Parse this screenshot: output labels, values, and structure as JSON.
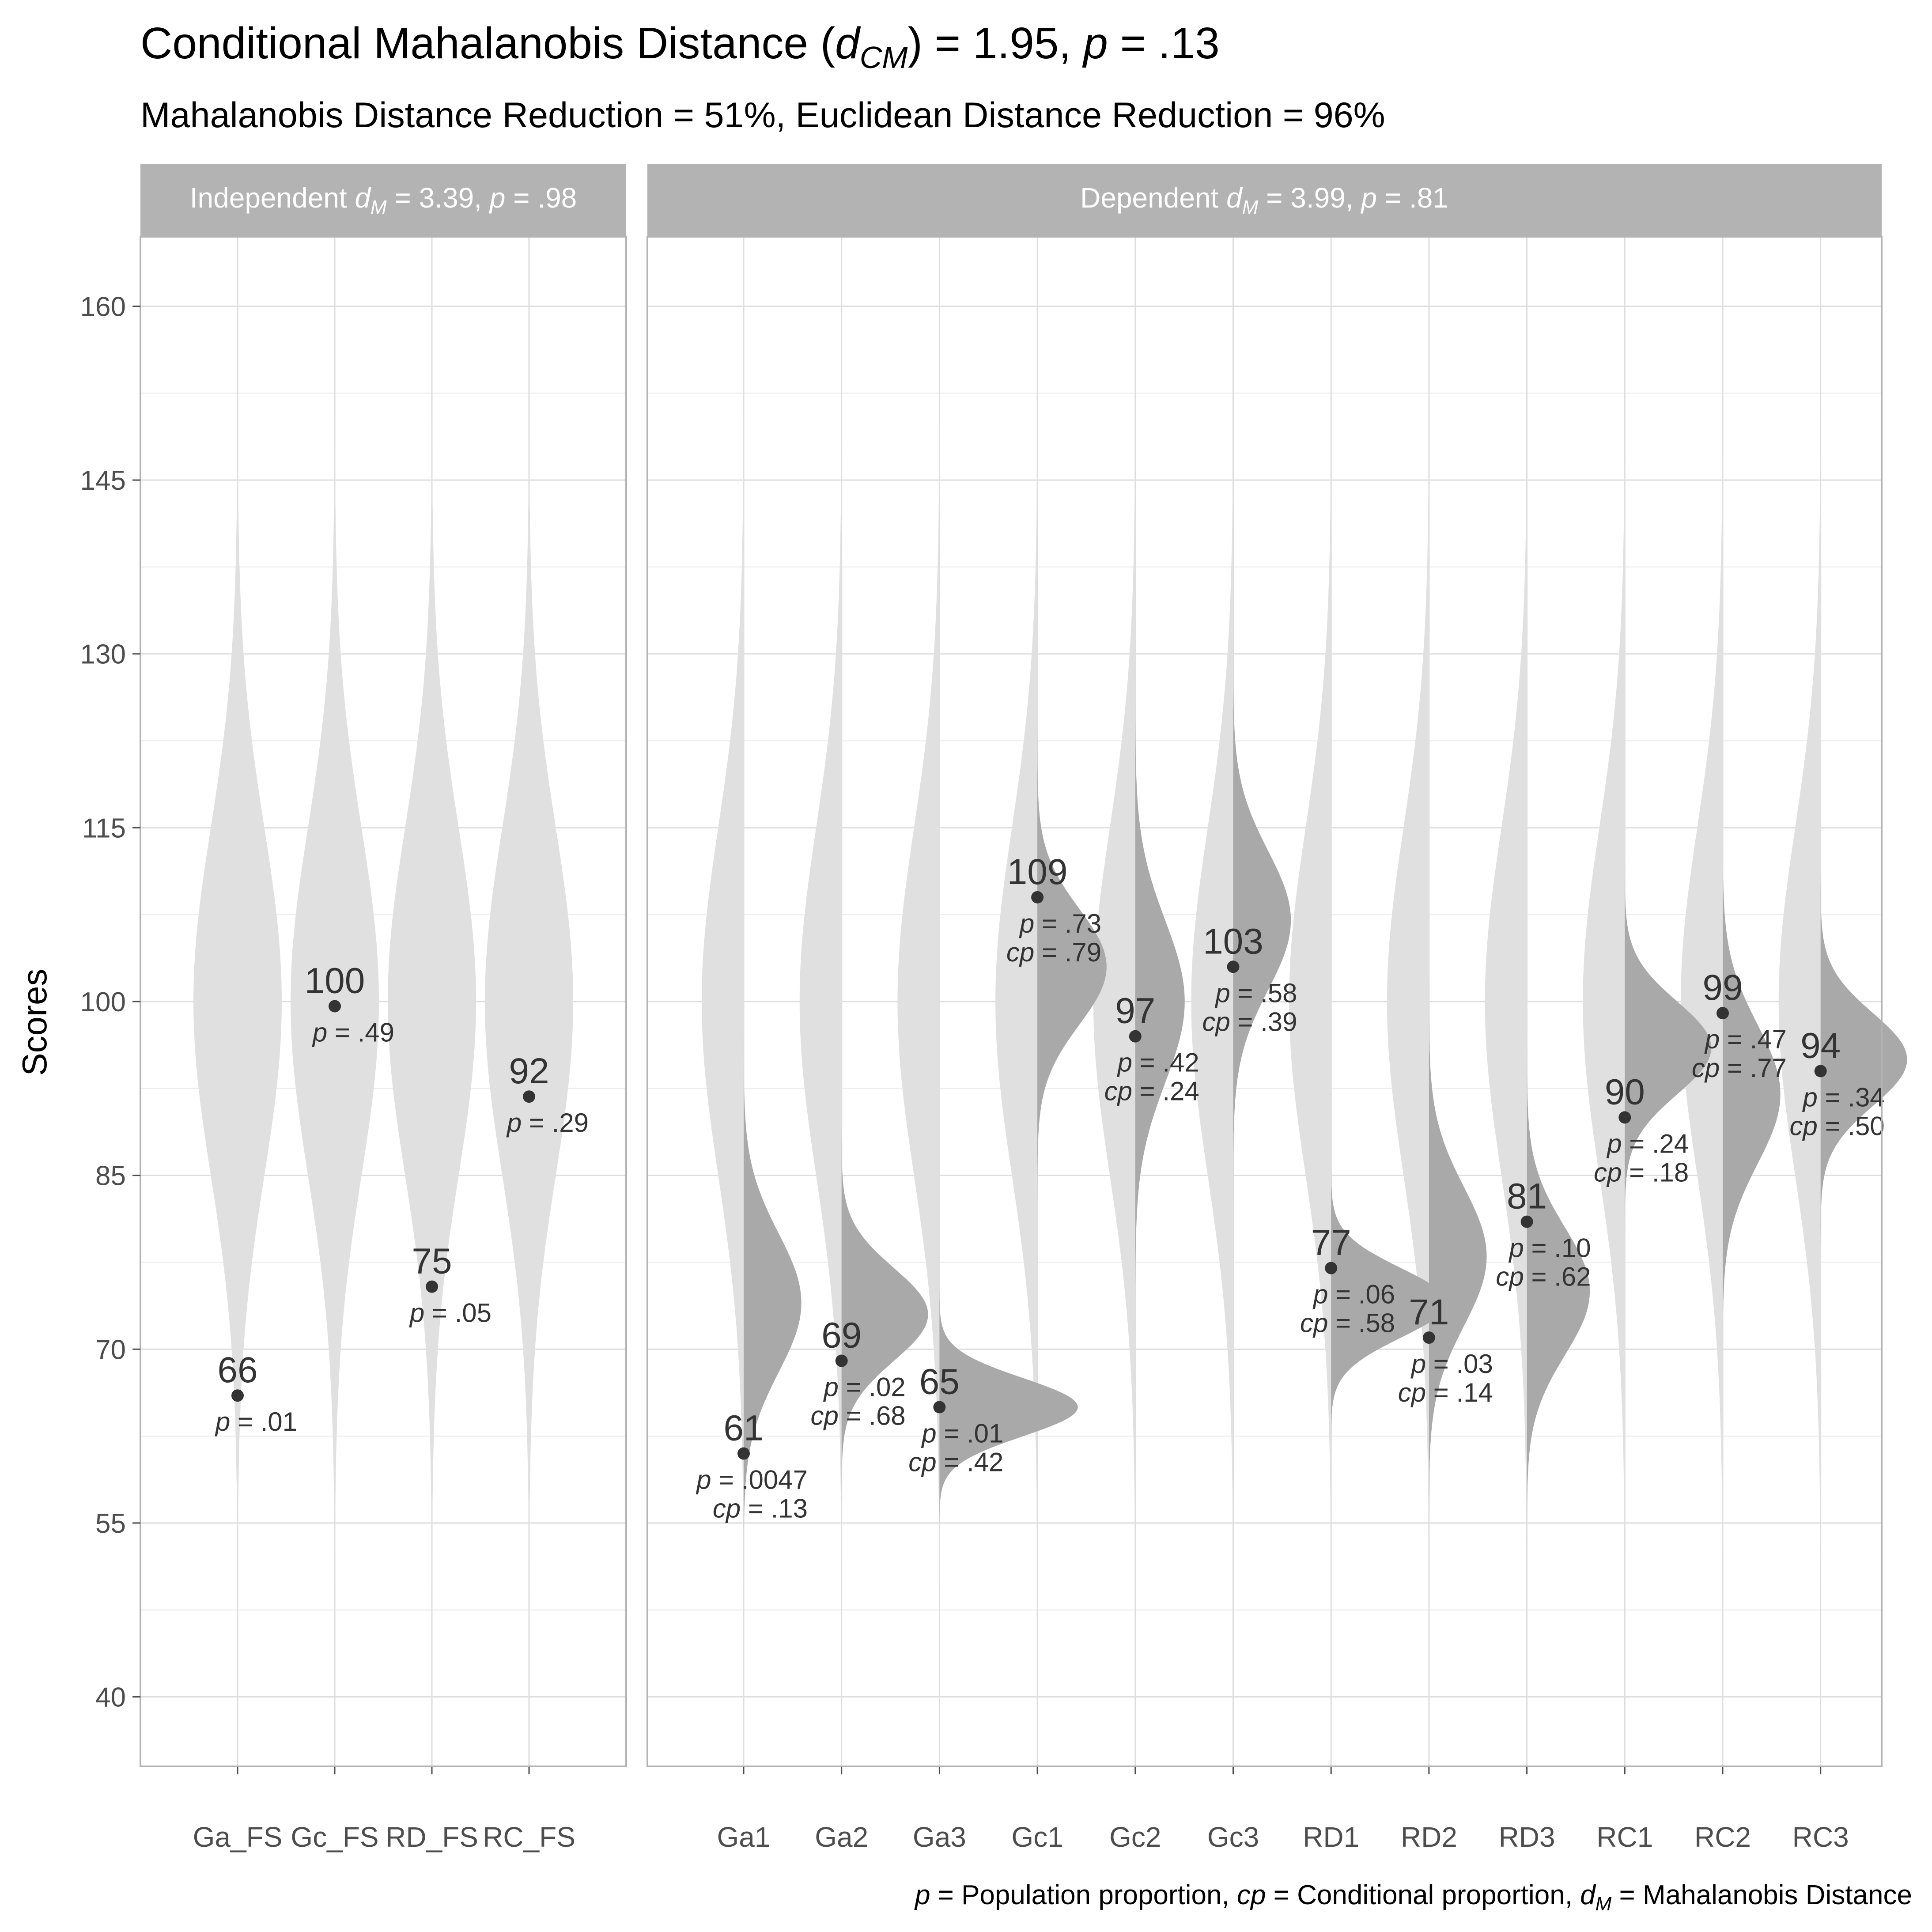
{
  "chart_data": {
    "type": "violin",
    "title": {
      "prefix": "Conditional Mahalanobis Distance (",
      "sym": "d",
      "sub": "CM",
      "mid": ") = 1.95, ",
      "p": "p",
      "tail": " = .13"
    },
    "subtitle": "Mahalanobis Distance Reduction = 51%, Euclidean Distance Reduction = 96%",
    "ylabel": "Scores",
    "ylim": [
      34,
      166
    ],
    "yticks": [
      40,
      55,
      70,
      85,
      100,
      115,
      130,
      145,
      160
    ],
    "grid": true,
    "panels": [
      {
        "label": {
          "pre": "Independent ",
          "sym": "d",
          "sub": "M",
          "mid": " = 3.39, ",
          "p": "p",
          "tail": " = .98"
        },
        "categories": [
          "Ga_FS",
          "Gc_FS",
          "RD_FS",
          "RC_FS"
        ],
        "scores": [
          66,
          100,
          75,
          92
        ],
        "score_values": [
          66,
          99.6,
          75.4,
          91.8
        ],
        "p": [
          ".01",
          ".49",
          ".05",
          ".29"
        ]
      },
      {
        "label": {
          "pre": "Dependent ",
          "sym": "d",
          "sub": "M",
          "mid": " = 3.99, ",
          "p": "p",
          "tail": " = .81"
        },
        "categories": [
          "Ga1",
          "Ga2",
          "Ga3",
          "Gc1",
          "Gc2",
          "Gc3",
          "RD1",
          "RD2",
          "RD3",
          "RC1",
          "RC2",
          "RC3"
        ],
        "scores": [
          61,
          69,
          65,
          109,
          97,
          103,
          77,
          71,
          81,
          90,
          99,
          94
        ],
        "p": [
          ".0047",
          ".02",
          ".01",
          ".73",
          ".42",
          ".58",
          ".06",
          ".03",
          ".10",
          ".24",
          ".47",
          ".34"
        ],
        "cp": [
          ".13",
          ".68",
          ".42",
          ".79",
          ".24",
          ".39",
          ".58",
          ".14",
          ".62",
          ".18",
          ".77",
          ".50"
        ],
        "conditional_mean": [
          74,
          73,
          65,
          103,
          100,
          107,
          74,
          78,
          75,
          96,
          92,
          95
        ],
        "conditional_sd": [
          6,
          4,
          2.5,
          5,
          7,
          6,
          3,
          6,
          5.5,
          4,
          6,
          4
        ]
      }
    ],
    "unconditional": {
      "mean": 100,
      "sd": 15
    },
    "footnote": {
      "p": "p",
      "t1": " = Population proportion, ",
      "cp": "cp",
      "t2": " = Conditional proportion, ",
      "d": "d",
      "sub": "M",
      "t3": " = Mahalanobis Distance"
    },
    "colors": {
      "violin": "#e0e0e0",
      "conditional": "#a9a9a9",
      "point": "#333333",
      "strip": "#b3b3b3",
      "grid_major": "#dedede",
      "grid_minor": "#eeeeee",
      "text": "#333333",
      "axis_text": "#4d4d4d"
    }
  }
}
